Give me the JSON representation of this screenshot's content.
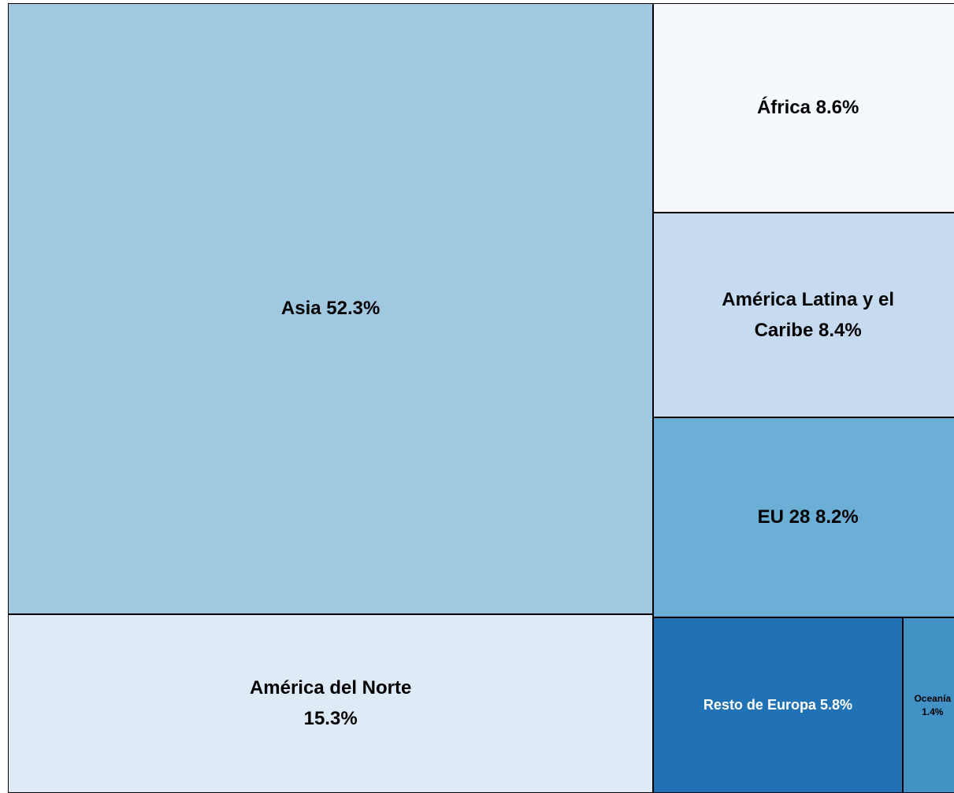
{
  "chart_data": {
    "type": "treemap",
    "categories": [
      "Asia",
      "América del Norte",
      "África",
      "América Latina y el Caribe",
      "EU 28",
      "Resto de Europa",
      "Oceanía"
    ],
    "values": [
      52.3,
      15.3,
      8.6,
      8.4,
      8.2,
      5.8,
      1.4
    ],
    "value_labels": [
      "52.3%",
      "15.3%",
      "8.6%",
      "8.4%",
      "8.2%",
      "5.8%",
      "1.4%"
    ],
    "colors": [
      "#a1c8e1",
      "#deeaf6",
      "#f5f9fe",
      "#c6dbef",
      "#6baed6",
      "#2171b5",
      "#4292c6"
    ]
  }
}
